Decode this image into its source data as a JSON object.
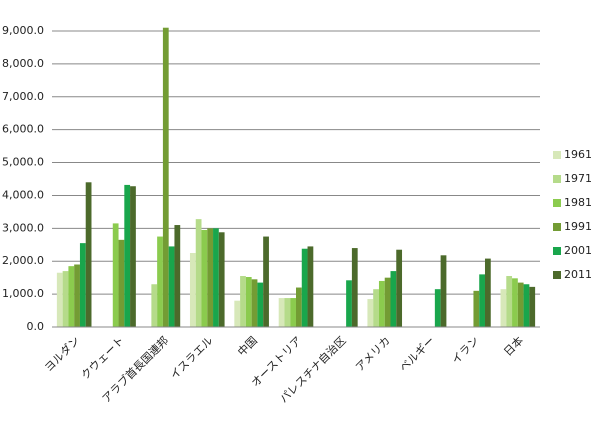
{
  "chart_data": {
    "type": "bar",
    "categories": [
      "ヨルダン",
      "クウェート",
      "アラブ首長国連邦",
      "イスラエル",
      "中国",
      "オーストリア",
      "パレスチナ自治区",
      "アメリカ",
      "ベルギー",
      "イラン",
      "日本"
    ],
    "series": [
      {
        "name": "1961",
        "color": "#d7e8b9",
        "values": [
          1650,
          null,
          null,
          2250,
          800,
          880,
          null,
          850,
          null,
          null,
          1150
        ]
      },
      {
        "name": "1971",
        "color": "#b5db8a",
        "values": [
          1700,
          null,
          1300,
          3280,
          1550,
          880,
          null,
          1150,
          null,
          null,
          1550
        ]
      },
      {
        "name": "1981",
        "color": "#8bcb4e",
        "values": [
          1850,
          3150,
          2750,
          2950,
          1520,
          880,
          null,
          1400,
          null,
          null,
          1480
        ]
      },
      {
        "name": "1991",
        "color": "#739c34",
        "values": [
          1900,
          2650,
          9100,
          3000,
          1450,
          1200,
          null,
          1500,
          null,
          1100,
          1350
        ]
      },
      {
        "name": "2001",
        "color": "#19a64c",
        "values": [
          2550,
          4320,
          2450,
          3000,
          1350,
          2380,
          1420,
          1700,
          1150,
          1600,
          1300
        ]
      },
      {
        "name": "2011",
        "color": "#4c6a2b",
        "values": [
          4400,
          4280,
          3100,
          2880,
          2750,
          2450,
          2400,
          2350,
          2180,
          2080,
          1220
        ]
      }
    ],
    "ylim": [
      0,
      9000
    ],
    "yticks": [
      {
        "value": 0,
        "label": "0.0"
      },
      {
        "value": 1000,
        "label": "1,000.0"
      },
      {
        "value": 2000,
        "label": "2,000.0"
      },
      {
        "value": 3000,
        "label": "3,000.0"
      },
      {
        "value": 4000,
        "label": "4,000.0"
      },
      {
        "value": 5000,
        "label": "5,000.0"
      },
      {
        "value": 6000,
        "label": "6,000.0"
      },
      {
        "value": 7000,
        "label": "7,000.0"
      },
      {
        "value": 8000,
        "label": "8,000.0"
      },
      {
        "value": 9000,
        "label": "9,000.0"
      }
    ],
    "grid": true,
    "legend": "right"
  }
}
